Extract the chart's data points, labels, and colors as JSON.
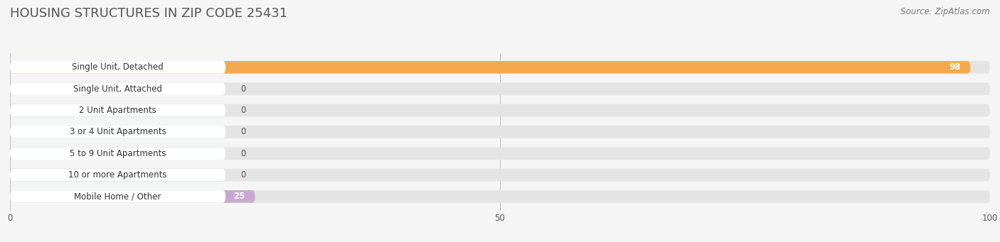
{
  "title": "HOUSING STRUCTURES IN ZIP CODE 25431",
  "source": "Source: ZipAtlas.com",
  "categories": [
    "Single Unit, Detached",
    "Single Unit, Attached",
    "2 Unit Apartments",
    "3 or 4 Unit Apartments",
    "5 to 9 Unit Apartments",
    "10 or more Apartments",
    "Mobile Home / Other"
  ],
  "values": [
    98,
    0,
    0,
    0,
    0,
    0,
    25
  ],
  "stub_value": 22,
  "bar_colors": [
    "#f5a94e",
    "#f4a0a0",
    "#a8c4e0",
    "#a8c4e0",
    "#a8c4e0",
    "#a8c4e0",
    "#c8a8d0"
  ],
  "background_color": "#f5f5f5",
  "bar_bg_color": "#e4e4e4",
  "label_bg_color": "#ffffff",
  "xlim": [
    0,
    100
  ],
  "xticks": [
    0,
    50,
    100
  ],
  "title_fontsize": 13,
  "label_fontsize": 8.5,
  "value_fontsize": 8.5,
  "source_fontsize": 8.5,
  "title_color": "#555555",
  "label_color": "#333333",
  "value_color_dark": "#555555",
  "value_color_light": "#ffffff"
}
